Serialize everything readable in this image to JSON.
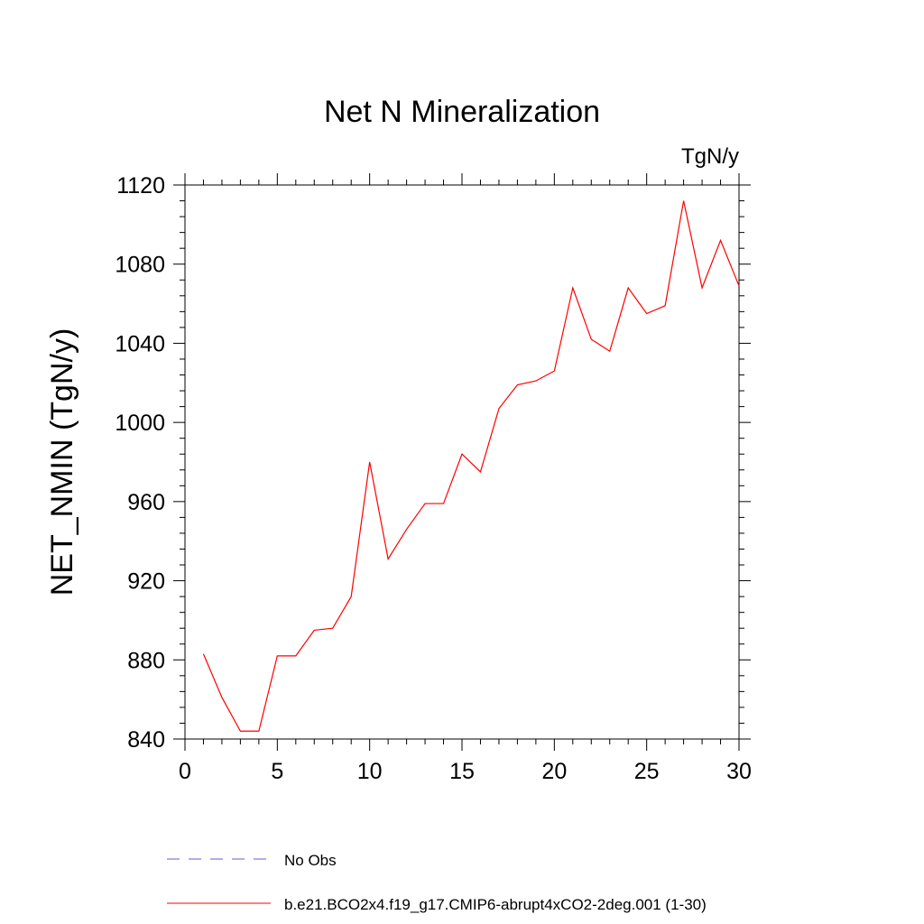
{
  "chart_data": {
    "type": "line",
    "title": "Net N Mineralization",
    "units_label": "TgN/y",
    "xlabel": "",
    "ylabel": "NET_NMIN  (TgN/y)",
    "xlim": [
      0,
      30
    ],
    "ylim": [
      840,
      1120
    ],
    "x_ticks": [
      0,
      5,
      10,
      15,
      20,
      25,
      30
    ],
    "y_ticks": [
      840,
      880,
      920,
      960,
      1000,
      1040,
      1080,
      1120
    ],
    "grid": false,
    "legend_position": "bottom",
    "series": [
      {
        "name": "No Obs",
        "style": "dashed",
        "color": "#6a5acd",
        "x": [],
        "values": []
      },
      {
        "name": "b.e21.BCO2x4.f19_g17.CMIP6-abrupt4xCO2-2deg.001 (1-30)",
        "style": "solid",
        "color": "#ff0000",
        "x": [
          1,
          2,
          3,
          4,
          5,
          6,
          7,
          8,
          9,
          10,
          11,
          12,
          13,
          14,
          15,
          16,
          17,
          18,
          19,
          20,
          21,
          22,
          23,
          24,
          25,
          26,
          27,
          28,
          29,
          30
        ],
        "values": [
          883,
          861,
          844,
          844,
          882,
          882,
          895,
          896,
          912,
          980,
          931,
          946,
          959,
          959,
          984,
          975,
          1007,
          1019,
          1021,
          1026,
          1068,
          1042,
          1036,
          1068,
          1055,
          1059,
          1112,
          1068,
          1092,
          1069
        ]
      }
    ]
  }
}
